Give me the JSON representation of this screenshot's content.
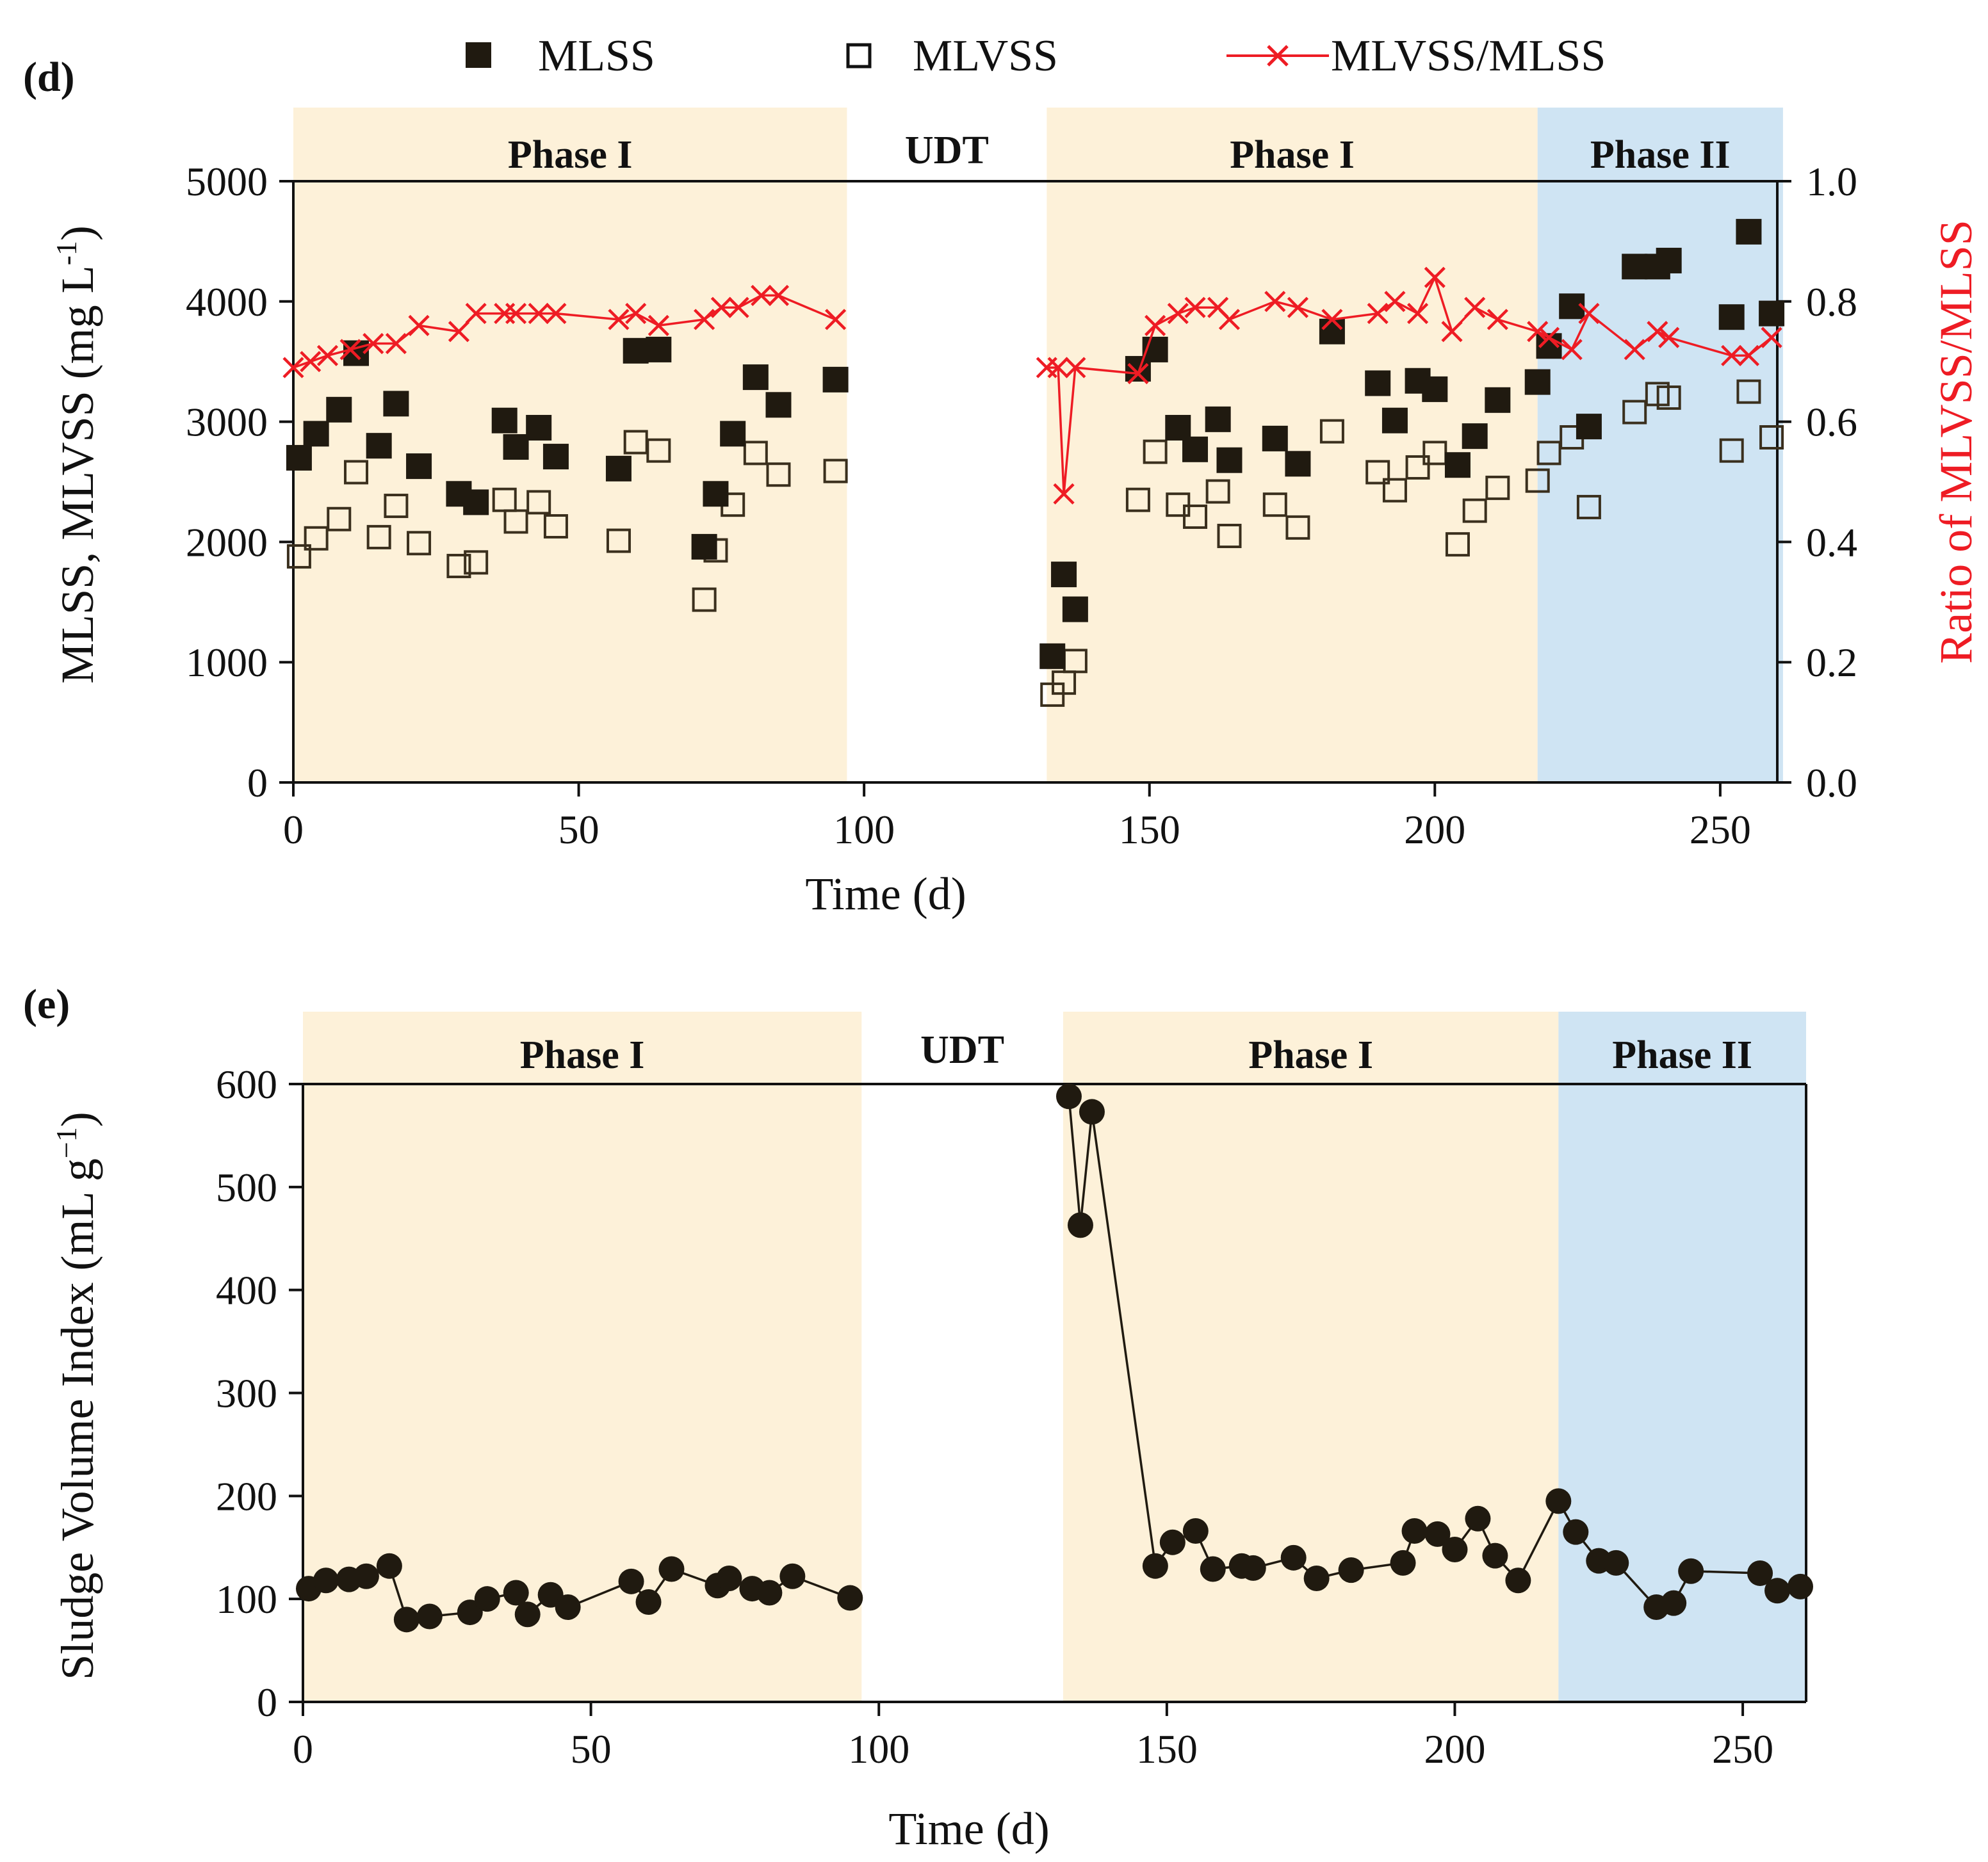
{
  "colors": {
    "phase1_fill": "#fdf1d9",
    "phase2_fill": "#cfe4f3",
    "mlss_fill": "#201a10",
    "mlvss_stroke": "#3a2f1d",
    "ratio_color": "#ee1c24",
    "svi_color": "#201a10"
  },
  "chart_data": [
    {
      "panel": "(d)",
      "type": "scatter",
      "xlabel": "Time (d)",
      "ylabel": "MLSS, MLVSS (mg L",
      "ylabel_superscript": "-1",
      "ylabel_close": ")",
      "y2label": "Ratio of MLVSS/MLSS",
      "xlim": [
        0,
        260
      ],
      "ylim": [
        0,
        5000
      ],
      "y2lim": [
        0,
        1
      ],
      "x_ticks": [
        0,
        50,
        100,
        150,
        200,
        250
      ],
      "x_tick_labels": [
        "0",
        "50",
        "100",
        "150",
        "200",
        "250"
      ],
      "y_ticks": [
        0,
        1000,
        2000,
        3000,
        4000,
        5000
      ],
      "y_tick_labels": [
        "0",
        "1000",
        "2000",
        "3000",
        "4000",
        "5000"
      ],
      "y2_ticks": [
        0,
        0.2,
        0.4,
        0.6,
        0.8,
        1.0
      ],
      "y2_tick_labels": [
        "0.0",
        "0.2",
        "0.4",
        "0.6",
        "0.8",
        "1.0"
      ],
      "phases": [
        {
          "label": "Phase I",
          "start": 0,
          "end": 97,
          "kind": "phase1"
        },
        {
          "label": "UDT",
          "start": 97,
          "end": 132,
          "kind": "none"
        },
        {
          "label": "Phase I",
          "start": 132,
          "end": 218,
          "kind": "phase1"
        },
        {
          "label": "Phase II",
          "start": 218,
          "end": 261,
          "kind": "phase2"
        }
      ],
      "legend": [
        "MLSS",
        "MLVSS",
        "MLVSS/MLSS"
      ],
      "series": [
        {
          "name": "MLSS",
          "marker": "filled-square",
          "points": [
            [
              1,
              2700
            ],
            [
              4,
              2900
            ],
            [
              8,
              3100
            ],
            [
              11,
              3570
            ],
            [
              15,
              2800
            ],
            [
              18,
              3150
            ],
            [
              22,
              2630
            ],
            [
              29,
              2400
            ],
            [
              32,
              2330
            ],
            [
              37,
              3010
            ],
            [
              39,
              2790
            ],
            [
              43,
              2950
            ],
            [
              46,
              2710
            ],
            [
              57,
              2610
            ],
            [
              60,
              3590
            ],
            [
              64,
              3600
            ],
            [
              72,
              1960
            ],
            [
              74,
              2400
            ],
            [
              77,
              2900
            ],
            [
              81,
              3370
            ],
            [
              85,
              3140
            ],
            [
              95,
              3350
            ],
            [
              133,
              1050
            ],
            [
              135,
              1730
            ],
            [
              137,
              1440
            ],
            [
              148,
              3440
            ],
            [
              151,
              3600
            ],
            [
              155,
              2950
            ],
            [
              158,
              2770
            ],
            [
              162,
              3020
            ],
            [
              164,
              2680
            ],
            [
              172,
              2860
            ],
            [
              176,
              2650
            ],
            [
              182,
              3750
            ],
            [
              190,
              3320
            ],
            [
              193,
              3010
            ],
            [
              197,
              3340
            ],
            [
              200,
              3270
            ],
            [
              204,
              2640
            ],
            [
              207,
              2880
            ],
            [
              211,
              3180
            ],
            [
              218,
              3330
            ],
            [
              220,
              3630
            ],
            [
              224,
              3960
            ],
            [
              227,
              2960
            ],
            [
              235,
              4290
            ],
            [
              239,
              4290
            ],
            [
              241,
              4340
            ],
            [
              252,
              3870
            ],
            [
              255,
              4580
            ],
            [
              259,
              3900
            ]
          ]
        },
        {
          "name": "MLVSS",
          "marker": "open-square",
          "points": [
            [
              1,
              1880
            ],
            [
              4,
              2030
            ],
            [
              8,
              2190
            ],
            [
              11,
              2580
            ],
            [
              15,
              2040
            ],
            [
              18,
              2300
            ],
            [
              22,
              1990
            ],
            [
              29,
              1800
            ],
            [
              32,
              1830
            ],
            [
              37,
              2350
            ],
            [
              39,
              2170
            ],
            [
              43,
              2330
            ],
            [
              46,
              2130
            ],
            [
              57,
              2010
            ],
            [
              60,
              2830
            ],
            [
              64,
              2760
            ],
            [
              72,
              1520
            ],
            [
              74,
              1930
            ],
            [
              77,
              2310
            ],
            [
              81,
              2740
            ],
            [
              85,
              2560
            ],
            [
              95,
              2590
            ],
            [
              133,
              730
            ],
            [
              135,
              830
            ],
            [
              137,
              1010
            ],
            [
              148,
              2350
            ],
            [
              151,
              2750
            ],
            [
              155,
              2310
            ],
            [
              158,
              2210
            ],
            [
              162,
              2420
            ],
            [
              164,
              2050
            ],
            [
              172,
              2310
            ],
            [
              176,
              2120
            ],
            [
              182,
              2920
            ],
            [
              190,
              2580
            ],
            [
              193,
              2430
            ],
            [
              197,
              2620
            ],
            [
              200,
              2740
            ],
            [
              204,
              1980
            ],
            [
              207,
              2260
            ],
            [
              211,
              2450
            ],
            [
              218,
              2510
            ],
            [
              220,
              2740
            ],
            [
              224,
              2870
            ],
            [
              227,
              2290
            ],
            [
              235,
              3080
            ],
            [
              239,
              3230
            ],
            [
              241,
              3200
            ],
            [
              252,
              2760
            ],
            [
              255,
              3250
            ],
            [
              259,
              2870
            ]
          ]
        },
        {
          "name": "MLVSS/MLSS",
          "marker": "x-line",
          "axis": "right",
          "segments": [
            [
              [
                0,
                0.69
              ],
              [
                3,
                0.7
              ],
              [
                6,
                0.71
              ],
              [
                10,
                0.72
              ],
              [
                14,
                0.73
              ],
              [
                18,
                0.73
              ],
              [
                22,
                0.76
              ],
              [
                29,
                0.75
              ],
              [
                32,
                0.78
              ],
              [
                37,
                0.78
              ],
              [
                39,
                0.78
              ],
              [
                43,
                0.78
              ],
              [
                46,
                0.78
              ],
              [
                57,
                0.77
              ],
              [
                60,
                0.78
              ],
              [
                64,
                0.76
              ],
              [
                72,
                0.77
              ],
              [
                75,
                0.79
              ],
              [
                78,
                0.79
              ],
              [
                82,
                0.81
              ],
              [
                85,
                0.81
              ],
              [
                95,
                0.77
              ]
            ],
            [
              [
                132,
                0.69
              ],
              [
                134,
                0.69
              ],
              [
                135,
                0.48
              ],
              [
                137,
                0.69
              ],
              [
                148,
                0.68
              ],
              [
                151,
                0.76
              ],
              [
                155,
                0.78
              ],
              [
                158,
                0.79
              ],
              [
                162,
                0.79
              ],
              [
                164,
                0.77
              ],
              [
                172,
                0.8
              ],
              [
                176,
                0.79
              ],
              [
                182,
                0.77
              ],
              [
                190,
                0.78
              ],
              [
                193,
                0.8
              ],
              [
                197,
                0.78
              ],
              [
                200,
                0.84
              ],
              [
                203,
                0.75
              ],
              [
                207,
                0.79
              ],
              [
                211,
                0.77
              ],
              [
                218,
                0.75
              ],
              [
                220,
                0.74
              ],
              [
                224,
                0.72
              ],
              [
                227,
                0.78
              ],
              [
                235,
                0.72
              ],
              [
                239,
                0.75
              ],
              [
                241,
                0.74
              ],
              [
                252,
                0.71
              ],
              [
                255,
                0.71
              ],
              [
                259,
                0.74
              ]
            ]
          ]
        }
      ]
    },
    {
      "panel": "(e)",
      "type": "line",
      "xlabel": "Time (d)",
      "ylabel": "Sludge Volume Index (mL g",
      "ylabel_superscript": "−1",
      "ylabel_close": ")",
      "xlim": [
        0,
        261
      ],
      "ylim": [
        0,
        600
      ],
      "x_ticks": [
        0,
        50,
        100,
        150,
        200,
        250
      ],
      "x_tick_labels": [
        "0",
        "50",
        "100",
        "150",
        "200",
        "250"
      ],
      "y_ticks": [
        0,
        100,
        200,
        300,
        400,
        500,
        600
      ],
      "y_tick_labels": [
        "0",
        "100",
        "200",
        "300",
        "400",
        "500",
        "600"
      ],
      "phases": [
        {
          "label": "Phase I",
          "start": 0,
          "end": 97,
          "kind": "phase1"
        },
        {
          "label": "UDT",
          "start": 97,
          "end": 132,
          "kind": "none"
        },
        {
          "label": "Phase I",
          "start": 132,
          "end": 218,
          "kind": "phase1"
        },
        {
          "label": "Phase II",
          "start": 218,
          "end": 261,
          "kind": "phase2"
        }
      ],
      "series": [
        {
          "name": "SVI",
          "marker": "filled-circle",
          "segments": [
            [
              [
                1,
                110
              ],
              [
                4,
                118
              ],
              [
                8,
                119
              ],
              [
                11,
                122
              ],
              [
                15,
                132
              ],
              [
                18,
                80
              ],
              [
                22,
                83
              ],
              [
                29,
                87
              ],
              [
                32,
                100
              ],
              [
                37,
                106
              ],
              [
                39,
                85
              ],
              [
                43,
                104
              ],
              [
                46,
                92
              ],
              [
                57,
                117
              ],
              [
                60,
                97
              ],
              [
                64,
                129
              ],
              [
                72,
                113
              ],
              [
                74,
                120
              ],
              [
                78,
                110
              ],
              [
                81,
                106
              ],
              [
                85,
                122
              ],
              [
                95,
                101
              ]
            ],
            [
              [
                133,
                588
              ],
              [
                135,
                463
              ],
              [
                137,
                573
              ],
              [
                148,
                132
              ],
              [
                151,
                155
              ],
              [
                155,
                166
              ],
              [
                158,
                129
              ],
              [
                163,
                132
              ],
              [
                165,
                130
              ],
              [
                172,
                140
              ],
              [
                176,
                120
              ],
              [
                182,
                128
              ],
              [
                191,
                135
              ],
              [
                193,
                166
              ],
              [
                197,
                163
              ],
              [
                200,
                148
              ],
              [
                204,
                178
              ],
              [
                207,
                142
              ],
              [
                211,
                118
              ],
              [
                218,
                195
              ],
              [
                221,
                165
              ],
              [
                225,
                137
              ],
              [
                228,
                135
              ],
              [
                235,
                92
              ],
              [
                238,
                96
              ],
              [
                241,
                127
              ],
              [
                253,
                125
              ],
              [
                256,
                108
              ],
              [
                260,
                112
              ]
            ]
          ]
        }
      ]
    }
  ]
}
